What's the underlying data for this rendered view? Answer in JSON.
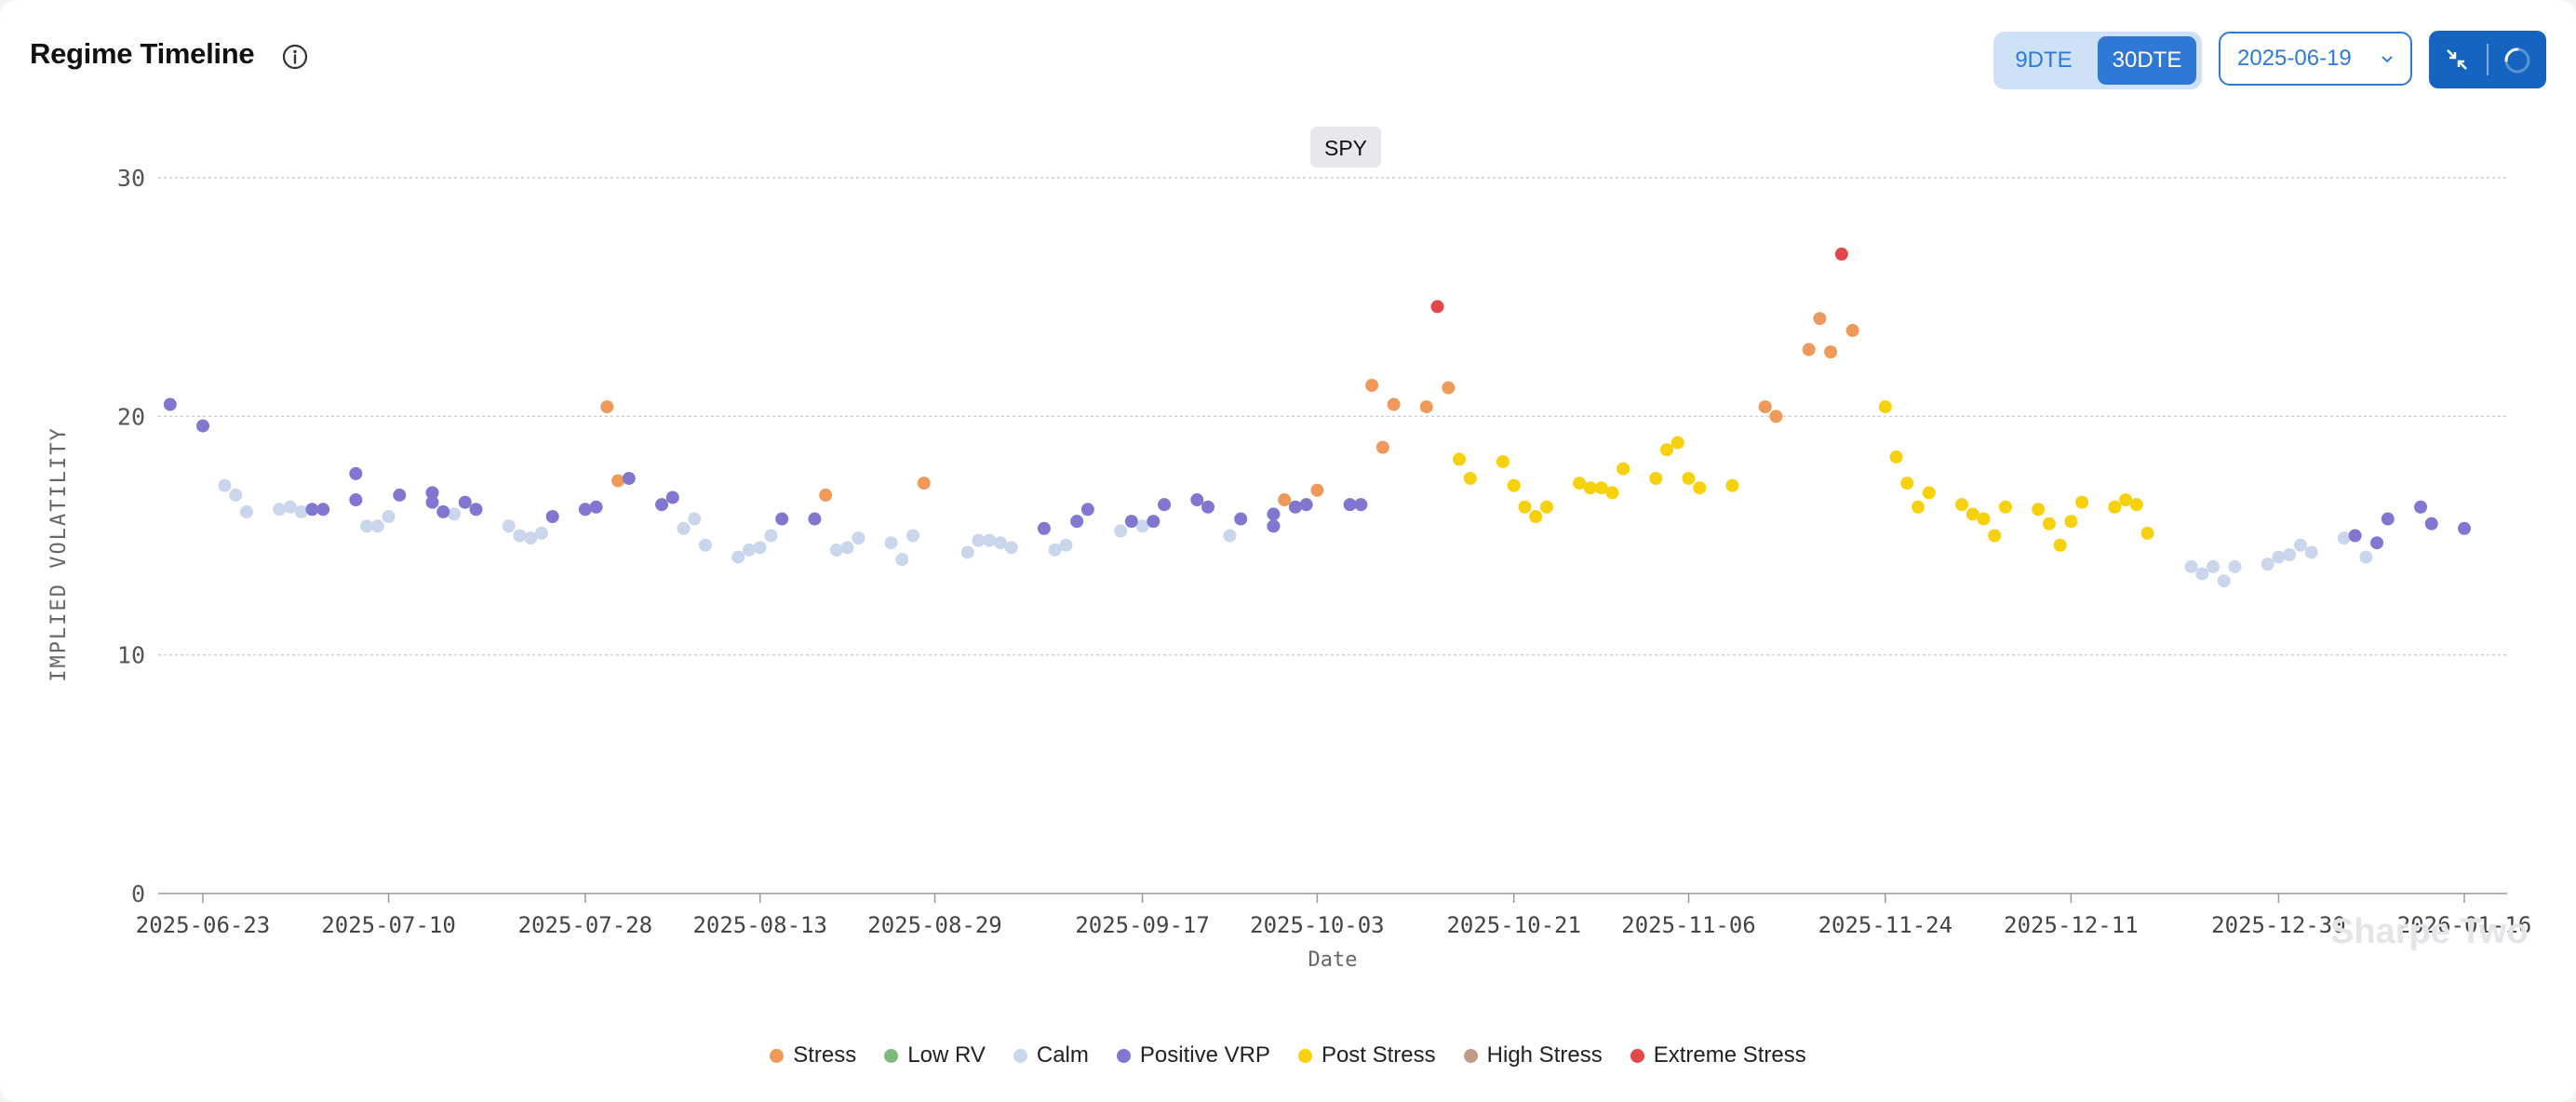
{
  "header": {
    "title": "Regime Timeline",
    "tabs": [
      {
        "label": "9DTE",
        "active": false
      },
      {
        "label": "30DTE",
        "active": true
      }
    ],
    "date_value": "2025-06-19",
    "icons": {
      "info": "info-icon",
      "date": "chevron-down-icon",
      "collapse": "collapse-icon",
      "loading": "loading-spinner-icon"
    }
  },
  "watermark": "Sharpe Two",
  "colors": {
    "Stress": "#ef9a5b",
    "Low RV": "#7cb97a",
    "Calm": "#c9d6ec",
    "Positive VRP": "#8177d1",
    "Post Stress": "#f7d10c",
    "High Stress": "#c29a8a",
    "Extreme Stress": "#e0484b",
    "accent": "#2f7ad8"
  },
  "chart_data": {
    "type": "scatter",
    "title": "SPY",
    "xlabel": "Date",
    "ylabel": "IMPLIED VOLATILITY",
    "ylim": [
      0,
      30
    ],
    "yticks": [
      0,
      10,
      20,
      30
    ],
    "xticks": [
      "2025-06-23",
      "2025-07-10",
      "2025-07-28",
      "2025-08-13",
      "2025-08-29",
      "2025-09-17",
      "2025-10-03",
      "2025-10-21",
      "2025-11-06",
      "2025-11-24",
      "2025-12-11",
      "2025-12-30",
      "2026-01-16"
    ],
    "grid": true,
    "legend_position": "bottom",
    "legend": [
      "Stress",
      "Low RV",
      "Calm",
      "Positive VRP",
      "Post Stress",
      "High Stress",
      "Extreme Stress"
    ],
    "series": [
      {
        "name": "Stress",
        "points": [
          {
            "x": "2025-07-30",
            "y": 20.4
          },
          {
            "x": "2025-07-31",
            "y": 17.3
          },
          {
            "x": "2025-08-19",
            "y": 16.7
          },
          {
            "x": "2025-08-28",
            "y": 17.2
          },
          {
            "x": "2025-09-30",
            "y": 16.5
          },
          {
            "x": "2025-10-03",
            "y": 16.9
          },
          {
            "x": "2025-10-08",
            "y": 21.3
          },
          {
            "x": "2025-10-09",
            "y": 18.7
          },
          {
            "x": "2025-10-10",
            "y": 20.5
          },
          {
            "x": "2025-10-13",
            "y": 20.4
          },
          {
            "x": "2025-10-15",
            "y": 21.2
          },
          {
            "x": "2025-11-13",
            "y": 20.4
          },
          {
            "x": "2025-11-14",
            "y": 20.0
          },
          {
            "x": "2025-11-17",
            "y": 22.8
          },
          {
            "x": "2025-11-18",
            "y": 24.1
          },
          {
            "x": "2025-11-19",
            "y": 22.7
          },
          {
            "x": "2025-11-21",
            "y": 23.6
          }
        ]
      },
      {
        "name": "Low RV",
        "points": []
      },
      {
        "name": "Calm",
        "points": [
          {
            "x": "2025-06-25",
            "y": 17.1
          },
          {
            "x": "2025-06-26",
            "y": 16.7
          },
          {
            "x": "2025-06-27",
            "y": 16.0
          },
          {
            "x": "2025-06-30",
            "y": 16.1
          },
          {
            "x": "2025-07-01",
            "y": 16.2
          },
          {
            "x": "2025-07-02",
            "y": 16.0
          },
          {
            "x": "2025-07-08",
            "y": 15.4
          },
          {
            "x": "2025-07-09",
            "y": 15.4
          },
          {
            "x": "2025-07-10",
            "y": 15.8
          },
          {
            "x": "2025-07-16",
            "y": 15.9
          },
          {
            "x": "2025-07-21",
            "y": 15.4
          },
          {
            "x": "2025-07-22",
            "y": 15.0
          },
          {
            "x": "2025-07-23",
            "y": 14.9
          },
          {
            "x": "2025-07-24",
            "y": 15.1
          },
          {
            "x": "2025-08-06",
            "y": 15.3
          },
          {
            "x": "2025-08-07",
            "y": 15.7
          },
          {
            "x": "2025-08-08",
            "y": 14.6
          },
          {
            "x": "2025-08-11",
            "y": 14.1
          },
          {
            "x": "2025-08-12",
            "y": 14.4
          },
          {
            "x": "2025-08-13",
            "y": 14.5
          },
          {
            "x": "2025-08-14",
            "y": 15.0
          },
          {
            "x": "2025-08-20",
            "y": 14.4
          },
          {
            "x": "2025-08-21",
            "y": 14.5
          },
          {
            "x": "2025-08-22",
            "y": 14.9
          },
          {
            "x": "2025-08-25",
            "y": 14.7
          },
          {
            "x": "2025-08-26",
            "y": 14.0
          },
          {
            "x": "2025-08-27",
            "y": 15.0
          },
          {
            "x": "2025-09-01",
            "y": 14.3
          },
          {
            "x": "2025-09-02",
            "y": 14.8
          },
          {
            "x": "2025-09-03",
            "y": 14.8
          },
          {
            "x": "2025-09-04",
            "y": 14.7
          },
          {
            "x": "2025-09-05",
            "y": 14.5
          },
          {
            "x": "2025-09-09",
            "y": 14.4
          },
          {
            "x": "2025-09-10",
            "y": 14.6
          },
          {
            "x": "2025-09-15",
            "y": 15.2
          },
          {
            "x": "2025-09-17",
            "y": 15.4
          },
          {
            "x": "2025-09-25",
            "y": 15.0
          },
          {
            "x": "2025-12-22",
            "y": 13.7
          },
          {
            "x": "2025-12-23",
            "y": 13.4
          },
          {
            "x": "2025-12-24",
            "y": 13.7
          },
          {
            "x": "2025-12-25",
            "y": 13.1
          },
          {
            "x": "2025-12-26",
            "y": 13.7
          },
          {
            "x": "2025-12-29",
            "y": 13.8
          },
          {
            "x": "2025-12-30",
            "y": 14.1
          },
          {
            "x": "2025-12-31",
            "y": 14.2
          },
          {
            "x": "2026-01-01",
            "y": 14.6
          },
          {
            "x": "2026-01-02",
            "y": 14.3
          },
          {
            "x": "2026-01-05",
            "y": 14.9
          },
          {
            "x": "2026-01-07",
            "y": 14.1
          }
        ]
      },
      {
        "name": "Positive VRP",
        "points": [
          {
            "x": "2025-06-20",
            "y": 20.5
          },
          {
            "x": "2025-06-23",
            "y": 19.6
          },
          {
            "x": "2025-07-03",
            "y": 16.1
          },
          {
            "x": "2025-07-04",
            "y": 16.1
          },
          {
            "x": "2025-07-07",
            "y": 17.6
          },
          {
            "x": "2025-07-07",
            "y": 16.5
          },
          {
            "x": "2025-07-11",
            "y": 16.7
          },
          {
            "x": "2025-07-14",
            "y": 16.4
          },
          {
            "x": "2025-07-14",
            "y": 16.8
          },
          {
            "x": "2025-07-15",
            "y": 16.0
          },
          {
            "x": "2025-07-17",
            "y": 16.4
          },
          {
            "x": "2025-07-18",
            "y": 16.1
          },
          {
            "x": "2025-07-25",
            "y": 15.8
          },
          {
            "x": "2025-07-28",
            "y": 16.1
          },
          {
            "x": "2025-07-29",
            "y": 16.2
          },
          {
            "x": "2025-08-01",
            "y": 17.4
          },
          {
            "x": "2025-08-04",
            "y": 16.3
          },
          {
            "x": "2025-08-05",
            "y": 16.6
          },
          {
            "x": "2025-08-15",
            "y": 15.7
          },
          {
            "x": "2025-08-18",
            "y": 15.7
          },
          {
            "x": "2025-09-08",
            "y": 15.3
          },
          {
            "x": "2025-09-11",
            "y": 15.6
          },
          {
            "x": "2025-09-12",
            "y": 16.1
          },
          {
            "x": "2025-09-16",
            "y": 15.6
          },
          {
            "x": "2025-09-18",
            "y": 15.6
          },
          {
            "x": "2025-09-19",
            "y": 16.3
          },
          {
            "x": "2025-09-22",
            "y": 16.5
          },
          {
            "x": "2025-09-23",
            "y": 16.2
          },
          {
            "x": "2025-09-26",
            "y": 15.7
          },
          {
            "x": "2025-09-29",
            "y": 15.9
          },
          {
            "x": "2025-09-29",
            "y": 15.4
          },
          {
            "x": "2025-10-01",
            "y": 16.2
          },
          {
            "x": "2025-10-02",
            "y": 16.3
          },
          {
            "x": "2025-10-06",
            "y": 16.3
          },
          {
            "x": "2025-10-07",
            "y": 16.3
          },
          {
            "x": "2026-01-06",
            "y": 15.0
          },
          {
            "x": "2026-01-08",
            "y": 14.7
          },
          {
            "x": "2026-01-09",
            "y": 15.7
          },
          {
            "x": "2026-01-12",
            "y": 16.2
          },
          {
            "x": "2026-01-13",
            "y": 15.5
          },
          {
            "x": "2026-01-16",
            "y": 15.3
          }
        ]
      },
      {
        "name": "Post Stress",
        "points": [
          {
            "x": "2025-10-16",
            "y": 18.2
          },
          {
            "x": "2025-10-17",
            "y": 17.4
          },
          {
            "x": "2025-10-20",
            "y": 18.1
          },
          {
            "x": "2025-10-21",
            "y": 17.1
          },
          {
            "x": "2025-10-22",
            "y": 16.2
          },
          {
            "x": "2025-10-23",
            "y": 15.8
          },
          {
            "x": "2025-10-24",
            "y": 16.2
          },
          {
            "x": "2025-10-27",
            "y": 17.2
          },
          {
            "x": "2025-10-28",
            "y": 17.0
          },
          {
            "x": "2025-10-29",
            "y": 17.0
          },
          {
            "x": "2025-10-30",
            "y": 16.8
          },
          {
            "x": "2025-10-31",
            "y": 17.8
          },
          {
            "x": "2025-11-03",
            "y": 17.4
          },
          {
            "x": "2025-11-04",
            "y": 18.6
          },
          {
            "x": "2025-11-05",
            "y": 18.9
          },
          {
            "x": "2025-11-06",
            "y": 17.4
          },
          {
            "x": "2025-11-07",
            "y": 17.0
          },
          {
            "x": "2025-11-10",
            "y": 17.1
          },
          {
            "x": "2025-11-24",
            "y": 20.4
          },
          {
            "x": "2025-11-25",
            "y": 18.3
          },
          {
            "x": "2025-11-26",
            "y": 17.2
          },
          {
            "x": "2025-11-27",
            "y": 16.2
          },
          {
            "x": "2025-11-28",
            "y": 16.8
          },
          {
            "x": "2025-12-01",
            "y": 16.3
          },
          {
            "x": "2025-12-02",
            "y": 15.9
          },
          {
            "x": "2025-12-03",
            "y": 15.7
          },
          {
            "x": "2025-12-04",
            "y": 15.0
          },
          {
            "x": "2025-12-05",
            "y": 16.2
          },
          {
            "x": "2025-12-08",
            "y": 16.1
          },
          {
            "x": "2025-12-09",
            "y": 15.5
          },
          {
            "x": "2025-12-10",
            "y": 14.6
          },
          {
            "x": "2025-12-11",
            "y": 15.6
          },
          {
            "x": "2025-12-12",
            "y": 16.4
          },
          {
            "x": "2025-12-15",
            "y": 16.2
          },
          {
            "x": "2025-12-16",
            "y": 16.5
          },
          {
            "x": "2025-12-17",
            "y": 16.3
          },
          {
            "x": "2025-12-18",
            "y": 15.1
          }
        ]
      },
      {
        "name": "High Stress",
        "points": []
      },
      {
        "name": "Extreme Stress",
        "points": [
          {
            "x": "2025-10-14",
            "y": 24.6
          },
          {
            "x": "2025-11-20",
            "y": 26.8
          }
        ]
      }
    ]
  }
}
